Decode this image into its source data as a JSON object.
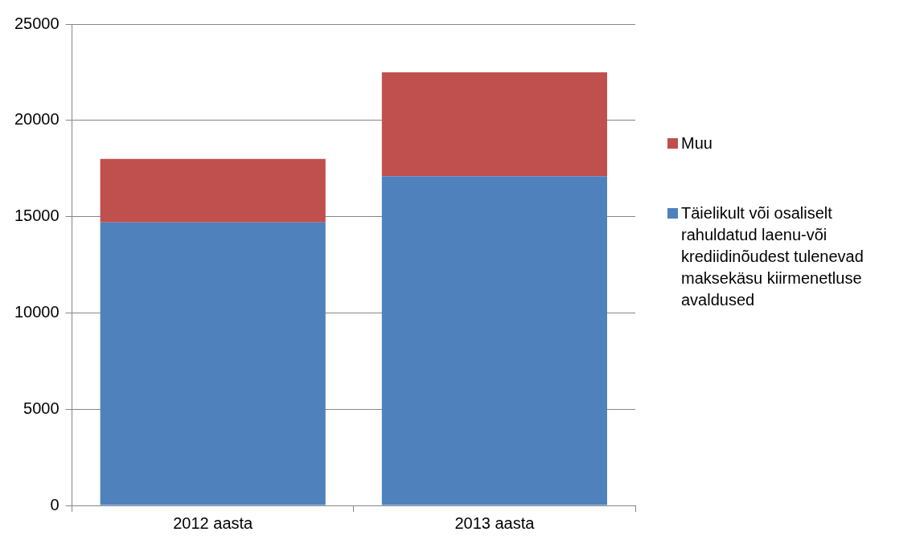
{
  "chart_data": {
    "type": "bar",
    "stacked": true,
    "categories": [
      "2012 aasta",
      "2013 aasta"
    ],
    "series": [
      {
        "name": "Täielikult või osaliselt rahuldatud laenu-või krediidinõudest tulenevad maksekäsu kiirmenetluse avaldused",
        "color": "#4f81bd",
        "values": [
          14700,
          17100
        ]
      },
      {
        "name": "Muu",
        "color": "#c0504d",
        "values": [
          3300,
          5400
        ]
      }
    ],
    "ylim": [
      0,
      25000
    ],
    "yticks": [
      0,
      5000,
      10000,
      15000,
      20000,
      25000
    ],
    "grid": "y",
    "legend": "right"
  }
}
